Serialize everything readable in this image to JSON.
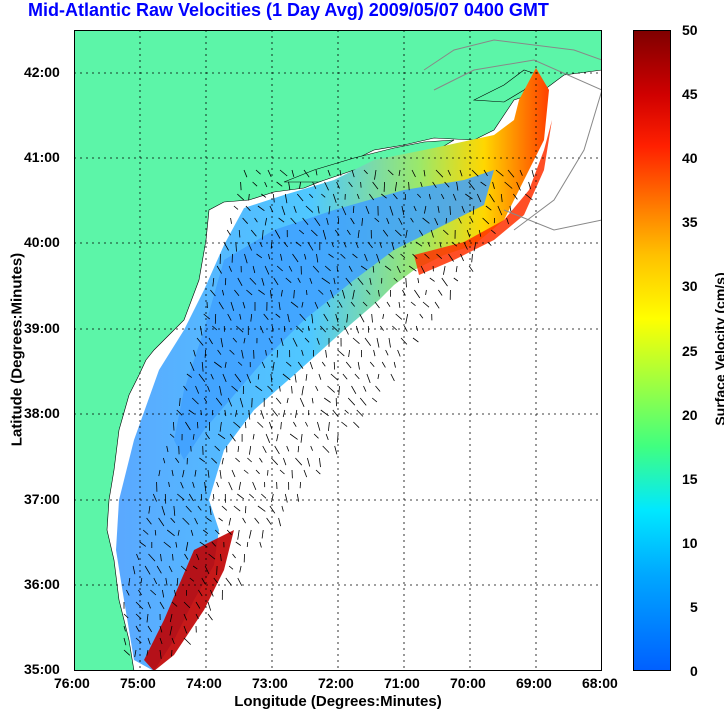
{
  "title": "Mid-Atlantic Raw Velocities (1 Day Avg) 2009/05/07 0400 GMT",
  "xlabel": "Longitude (Degrees:Minutes)",
  "ylabel": "Latitude (Degrees:Minutes)",
  "colorbar_label": "Surface Velocity (cm/s)",
  "x_ticks": [
    "76:00",
    "75:00",
    "74:00",
    "73:00",
    "72:00",
    "71:00",
    "70:00",
    "69:00",
    "68:00"
  ],
  "y_ticks": [
    "42:00",
    "41:00",
    "40:00",
    "39:00",
    "38:00",
    "37:00",
    "36:00",
    "35:00"
  ],
  "colorbar_ticks": [
    "50",
    "45",
    "40",
    "35",
    "30",
    "25",
    "20",
    "15",
    "10",
    "5",
    "0"
  ],
  "colors": {
    "land": "#5cf5a8",
    "ocean": "#ffffff",
    "velocity_min": "#0070ff",
    "velocity_max": "#8b0000",
    "title": "#0000ff"
  },
  "map": {
    "lon_range": [
      -76,
      -68
    ],
    "lat_range": [
      35,
      42.5
    ],
    "velocity_range_cm_s": [
      0,
      50
    ]
  }
}
